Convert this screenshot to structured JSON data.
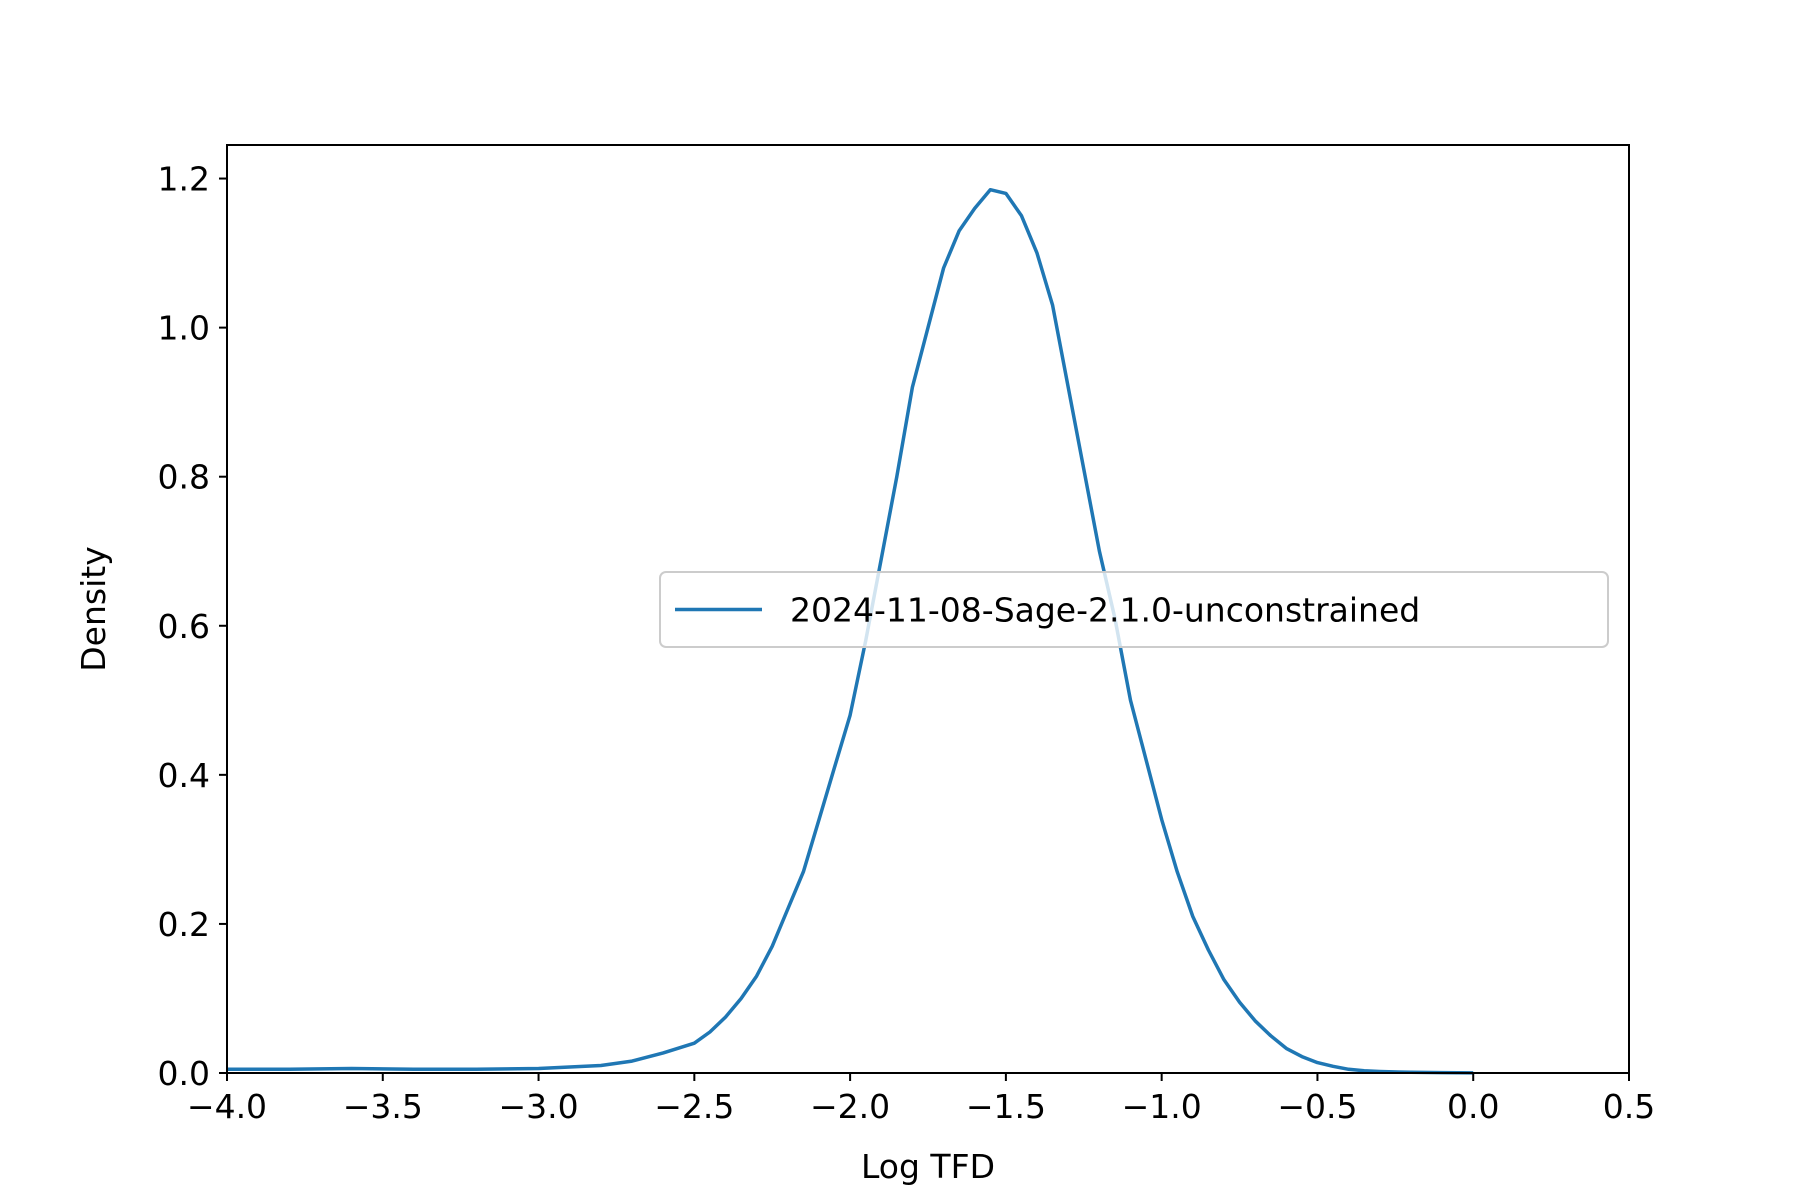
{
  "chart_data": {
    "type": "line",
    "xlabel": "Log TFD",
    "ylabel": "Density",
    "xlim": [
      -4.0,
      0.5
    ],
    "ylim": [
      0.0,
      1.245
    ],
    "x_ticks": [
      -4.0,
      -3.5,
      -3.0,
      -2.5,
      -2.0,
      -1.5,
      -1.0,
      -0.5,
      0.0,
      0.5
    ],
    "x_tick_labels": [
      "−4.0",
      "−3.5",
      "−3.0",
      "−2.5",
      "−2.0",
      "−1.5",
      "−1.0",
      "−0.5",
      "0.0",
      "0.5"
    ],
    "y_ticks": [
      0.0,
      0.2,
      0.4,
      0.6,
      0.8,
      1.0,
      1.2
    ],
    "y_tick_labels": [
      "0.0",
      "0.2",
      "0.4",
      "0.6",
      "0.8",
      "1.0",
      "1.2"
    ],
    "grid": false,
    "legend": {
      "placement": "center-right"
    },
    "series": [
      {
        "name": "2024-11-08-Sage-2.1.0-unconstrained",
        "color": "#1f77b4",
        "x": [
          -4.0,
          -3.8,
          -3.6,
          -3.4,
          -3.2,
          -3.0,
          -2.9,
          -2.8,
          -2.7,
          -2.6,
          -2.5,
          -2.45,
          -2.4,
          -2.35,
          -2.3,
          -2.25,
          -2.2,
          -2.15,
          -2.1,
          -2.05,
          -2.0,
          -1.95,
          -1.9,
          -1.85,
          -1.8,
          -1.75,
          -1.7,
          -1.65,
          -1.6,
          -1.55,
          -1.5,
          -1.45,
          -1.4,
          -1.35,
          -1.3,
          -1.25,
          -1.2,
          -1.15,
          -1.1,
          -1.05,
          -1.0,
          -0.95,
          -0.9,
          -0.85,
          -0.8,
          -0.75,
          -0.7,
          -0.65,
          -0.6,
          -0.55,
          -0.5,
          -0.45,
          -0.4,
          -0.35,
          -0.3,
          -0.2,
          -0.1,
          0.0
        ],
        "values": [
          0.005,
          0.005,
          0.006,
          0.005,
          0.005,
          0.006,
          0.008,
          0.01,
          0.016,
          0.027,
          0.04,
          0.055,
          0.075,
          0.1,
          0.13,
          0.17,
          0.22,
          0.27,
          0.34,
          0.41,
          0.48,
          0.58,
          0.69,
          0.8,
          0.92,
          1.0,
          1.08,
          1.13,
          1.16,
          1.185,
          1.18,
          1.15,
          1.1,
          1.03,
          0.92,
          0.81,
          0.7,
          0.61,
          0.5,
          0.42,
          0.34,
          0.27,
          0.21,
          0.165,
          0.125,
          0.095,
          0.07,
          0.05,
          0.033,
          0.022,
          0.014,
          0.009,
          0.005,
          0.003,
          0.002,
          0.001,
          0.0005,
          0.0002
        ]
      }
    ]
  }
}
